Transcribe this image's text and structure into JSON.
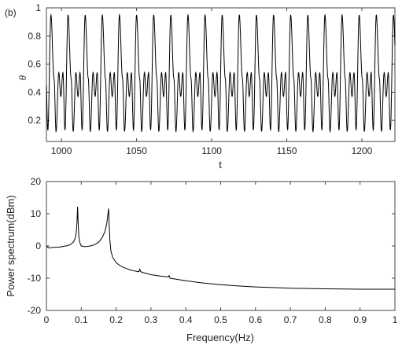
{
  "panel_label": "(b)",
  "chart_data": [
    {
      "type": "line",
      "xlabel": "t",
      "ylabel": "θ",
      "xlim": [
        990,
        1222
      ],
      "ylim": [
        0.05,
        1.0
      ],
      "xticks": [
        1000,
        1050,
        1100,
        1150,
        1200
      ],
      "yticks": [
        0.2,
        0.4,
        0.6,
        0.8,
        1.0
      ],
      "xtick_labels": [
        "1000",
        "1050",
        "1100",
        "1150",
        "1200"
      ],
      "ytick_labels": [
        "0.2",
        "0.4",
        "0.6",
        "0.8",
        "1"
      ],
      "grid": false,
      "series": [
        {
          "period": 11.4,
          "max": 0.95,
          "min": 0.12,
          "secondary_peak": 0.54,
          "secondary_trough": 0.37,
          "color": "#000000"
        }
      ]
    },
    {
      "type": "line",
      "xlabel": "Frequency(Hz)",
      "ylabel": "Power spectrum(dBm)",
      "xlim": [
        0,
        1
      ],
      "ylim": [
        -20,
        20
      ],
      "xticks": [
        0,
        0.1,
        0.2,
        0.3,
        0.4,
        0.5,
        0.6,
        0.7,
        0.8,
        0.9,
        1.0
      ],
      "yticks": [
        -20,
        -10,
        0,
        10,
        20
      ],
      "xtick_labels": [
        "0",
        "0.1",
        "0.2",
        "0.3",
        "0.4",
        "0.5",
        "0.6",
        "0.7",
        "0.8",
        "0.9",
        "1"
      ],
      "ytick_labels": [
        "-20",
        "-10",
        "0",
        "10",
        "20"
      ],
      "grid": false,
      "series": [
        {
          "x": [
            0,
            0.005,
            0.01,
            0.02,
            0.03,
            0.04,
            0.05,
            0.06,
            0.07,
            0.078,
            0.083,
            0.086,
            0.088,
            0.0895,
            0.091,
            0.093,
            0.096,
            0.1,
            0.11,
            0.12,
            0.13,
            0.14,
            0.15,
            0.16,
            0.168,
            0.173,
            0.176,
            0.1785,
            0.18,
            0.182,
            0.185,
            0.19,
            0.2,
            0.21,
            0.22,
            0.23,
            0.24,
            0.25,
            0.265,
            0.268,
            0.27,
            0.275,
            0.3,
            0.33,
            0.35,
            0.352,
            0.355,
            0.4,
            0.45,
            0.5,
            0.55,
            0.6,
            0.65,
            0.7,
            0.75,
            0.8,
            0.85,
            0.9,
            0.95,
            1.0
          ],
          "y": [
            0,
            -0.5,
            -0.6,
            -0.4,
            -0.4,
            -0.3,
            -0.1,
            0.1,
            0.5,
            1.3,
            2.5,
            4.5,
            8.0,
            12.2,
            7.5,
            3.0,
            1.0,
            0.0,
            -0.2,
            -0.1,
            0.1,
            0.5,
            1.2,
            2.6,
            4.5,
            6.8,
            9.5,
            11.6,
            7.0,
            2.0,
            -1.5,
            -3.5,
            -5.2,
            -6.0,
            -6.6,
            -7.0,
            -7.4,
            -7.7,
            -8.0,
            -7.2,
            -7.9,
            -8.2,
            -8.9,
            -9.4,
            -9.6,
            -9.2,
            -10.0,
            -10.8,
            -11.5,
            -12.0,
            -12.4,
            -12.7,
            -12.9,
            -13.1,
            -13.2,
            -13.3,
            -13.35,
            -13.4,
            -13.4,
            -13.4
          ],
          "color": "#000000"
        }
      ]
    }
  ]
}
